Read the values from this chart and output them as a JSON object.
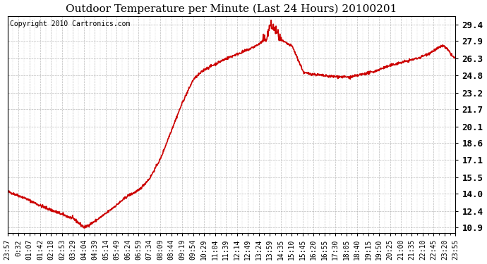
{
  "title": "Outdoor Temperature per Minute (Last 24 Hours) 20100201",
  "copyright_text": "Copyright 2010 Cartronics.com",
  "line_color": "#cc0000",
  "bg_color": "#ffffff",
  "plot_bg_color": "#ffffff",
  "grid_color": "#aaaaaa",
  "yticks": [
    10.9,
    12.4,
    14.0,
    15.5,
    17.1,
    18.6,
    20.1,
    21.7,
    23.2,
    24.8,
    26.3,
    27.9,
    29.4
  ],
  "ylim": [
    10.4,
    30.2
  ],
  "xtick_labels": [
    "23:57",
    "0:32",
    "01:07",
    "01:42",
    "02:18",
    "02:53",
    "03:29",
    "04:04",
    "04:39",
    "05:14",
    "05:49",
    "06:24",
    "06:59",
    "07:34",
    "08:09",
    "08:44",
    "09:19",
    "09:54",
    "10:29",
    "11:04",
    "11:39",
    "12:14",
    "12:49",
    "13:24",
    "13:59",
    "14:35",
    "15:10",
    "15:45",
    "16:20",
    "16:55",
    "17:30",
    "18:05",
    "18:40",
    "19:15",
    "19:50",
    "20:25",
    "21:00",
    "21:35",
    "22:10",
    "22:45",
    "23:20",
    "23:55"
  ],
  "title_fontsize": 11,
  "copyright_fontsize": 7,
  "ytick_fontsize": 9,
  "xtick_fontsize": 7,
  "line_width": 1.2,
  "keypoints_x": [
    0,
    55,
    105,
    141,
    176,
    212,
    247,
    282,
    317,
    352,
    387,
    422,
    457,
    492,
    527,
    562,
    597,
    632,
    667,
    702,
    737,
    772,
    807,
    835,
    842,
    860,
    877,
    915,
    952,
    990,
    1027,
    1065,
    1100,
    1137,
    1175,
    1212,
    1250,
    1287,
    1324,
    1355,
    1399,
    1414,
    1430,
    1439
  ],
  "keypoints_y": [
    14.2,
    13.6,
    12.9,
    12.5,
    12.1,
    11.7,
    10.9,
    11.5,
    12.2,
    13.0,
    13.8,
    14.3,
    15.4,
    17.2,
    19.8,
    22.3,
    24.4,
    25.3,
    25.8,
    26.3,
    26.7,
    27.1,
    27.6,
    28.3,
    29.3,
    29.0,
    28.0,
    27.4,
    25.0,
    24.85,
    24.7,
    24.65,
    24.6,
    24.85,
    25.1,
    25.5,
    25.85,
    26.1,
    26.4,
    26.8,
    27.5,
    27.1,
    26.5,
    26.3
  ],
  "noise_seed": 42
}
